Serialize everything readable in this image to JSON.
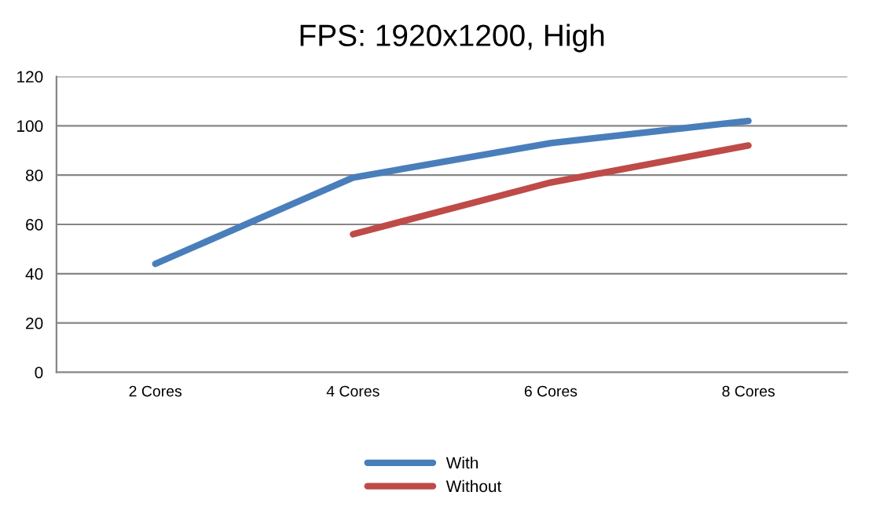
{
  "chart_data": {
    "type": "line",
    "title": "FPS: 1920x1200, High",
    "categories": [
      "2 Cores",
      "4 Cores",
      "6 Cores",
      "8 Cores"
    ],
    "series": [
      {
        "name": "With",
        "color": "#4a7ebb",
        "values": [
          44,
          79,
          93,
          102
        ]
      },
      {
        "name": "Without",
        "color": "#be4b48",
        "values": [
          null,
          56,
          77,
          92
        ]
      }
    ],
    "ylim": [
      0,
      120
    ],
    "yticks": [
      0,
      20,
      40,
      60,
      80,
      100,
      120
    ],
    "grid": "y",
    "legend": "bottom",
    "marker": "none",
    "line_style": "solid"
  }
}
